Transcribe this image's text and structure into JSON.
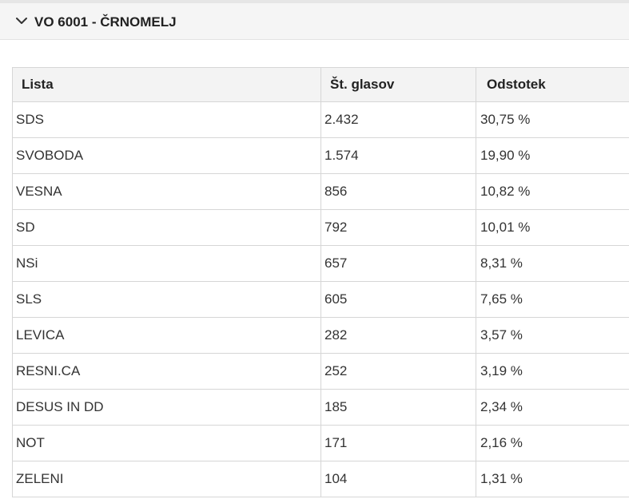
{
  "section": {
    "title": "VO 6001 - ČRNOMELJ",
    "expanded_icon": "chevron-down-icon"
  },
  "table": {
    "headers": {
      "lista": "Lista",
      "glasov": "Št. glasov",
      "odstotek": "Odstotek"
    },
    "rows": [
      {
        "lista": "SDS",
        "glasov": "2.432",
        "odstotek": "30,75 %"
      },
      {
        "lista": "SVOBODA",
        "glasov": "1.574",
        "odstotek": "19,90 %"
      },
      {
        "lista": "VESNA",
        "glasov": "856",
        "odstotek": "10,82 %"
      },
      {
        "lista": "SD",
        "glasov": "792",
        "odstotek": "10,01 %"
      },
      {
        "lista": "NSi",
        "glasov": "657",
        "odstotek": "8,31 %"
      },
      {
        "lista": "SLS",
        "glasov": "605",
        "odstotek": "7,65 %"
      },
      {
        "lista": "LEVICA",
        "glasov": "282",
        "odstotek": "3,57 %"
      },
      {
        "lista": "RESNI.CA",
        "glasov": "252",
        "odstotek": "3,19 %"
      },
      {
        "lista": "DESUS IN DD",
        "glasov": "185",
        "odstotek": "2,34 %"
      },
      {
        "lista": "NOT",
        "glasov": "171",
        "odstotek": "2,16 %"
      },
      {
        "lista": "ZELENI",
        "glasov": "104",
        "odstotek": "1,31 %"
      }
    ]
  }
}
